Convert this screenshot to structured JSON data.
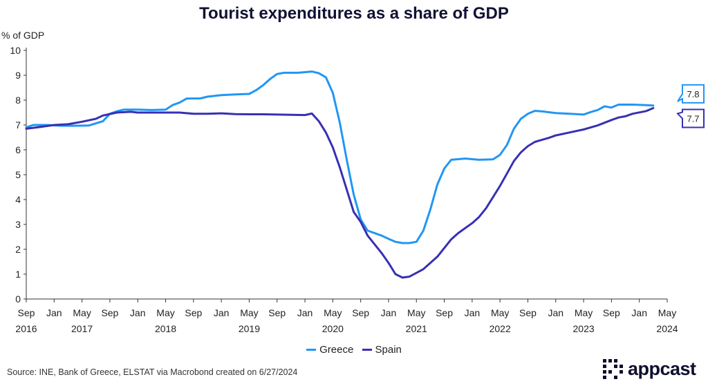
{
  "chart_data": {
    "type": "line",
    "title": "Tourist expenditures as a share of GDP",
    "ylabel": "% of GDP",
    "ylim": [
      0,
      10
    ],
    "yticks": [
      0,
      1,
      2,
      3,
      4,
      5,
      6,
      7,
      8,
      9,
      10
    ],
    "xlim": [
      "2016-09",
      "2024-05"
    ],
    "xticks": [
      {
        "date": "2016-09",
        "label": "Sep",
        "year": "2016"
      },
      {
        "date": "2017-01",
        "label": "Jan",
        "year": ""
      },
      {
        "date": "2017-05",
        "label": "May",
        "year": "2017"
      },
      {
        "date": "2017-09",
        "label": "Sep",
        "year": ""
      },
      {
        "date": "2018-01",
        "label": "Jan",
        "year": ""
      },
      {
        "date": "2018-05",
        "label": "May",
        "year": "2018"
      },
      {
        "date": "2018-09",
        "label": "Sep",
        "year": ""
      },
      {
        "date": "2019-01",
        "label": "Jan",
        "year": ""
      },
      {
        "date": "2019-05",
        "label": "May",
        "year": "2019"
      },
      {
        "date": "2019-09",
        "label": "Sep",
        "year": ""
      },
      {
        "date": "2020-01",
        "label": "Jan",
        "year": ""
      },
      {
        "date": "2020-05",
        "label": "May",
        "year": "2020"
      },
      {
        "date": "2020-09",
        "label": "Sep",
        "year": ""
      },
      {
        "date": "2021-01",
        "label": "Jan",
        "year": ""
      },
      {
        "date": "2021-05",
        "label": "May",
        "year": "2021"
      },
      {
        "date": "2021-09",
        "label": "Sep",
        "year": ""
      },
      {
        "date": "2022-01",
        "label": "Jan",
        "year": ""
      },
      {
        "date": "2022-05",
        "label": "May",
        "year": "2022"
      },
      {
        "date": "2022-09",
        "label": "Sep",
        "year": ""
      },
      {
        "date": "2023-01",
        "label": "Jan",
        "year": ""
      },
      {
        "date": "2023-05",
        "label": "May",
        "year": "2023"
      },
      {
        "date": "2023-09",
        "label": "Sep",
        "year": ""
      },
      {
        "date": "2024-01",
        "label": "Jan",
        "year": ""
      },
      {
        "date": "2024-05",
        "label": "May",
        "year": "2024"
      }
    ],
    "grid": false,
    "legend_position": "bottom-center",
    "series": [
      {
        "name": "Greece",
        "color": "#2196f3",
        "end_label": "7.8",
        "points": [
          [
            "2016-09",
            6.9
          ],
          [
            "2016-10",
            7.0
          ],
          [
            "2016-12",
            7.0
          ],
          [
            "2017-02",
            6.97
          ],
          [
            "2017-04",
            6.97
          ],
          [
            "2017-06",
            6.98
          ],
          [
            "2017-08",
            7.15
          ],
          [
            "2017-09",
            7.45
          ],
          [
            "2017-10",
            7.55
          ],
          [
            "2017-11",
            7.62
          ],
          [
            "2018-01",
            7.62
          ],
          [
            "2018-03",
            7.6
          ],
          [
            "2018-05",
            7.62
          ],
          [
            "2018-06",
            7.8
          ],
          [
            "2018-07",
            7.9
          ],
          [
            "2018-08",
            8.06
          ],
          [
            "2018-10",
            8.07
          ],
          [
            "2018-11",
            8.14
          ],
          [
            "2019-01",
            8.2
          ],
          [
            "2019-03",
            8.23
          ],
          [
            "2019-05",
            8.25
          ],
          [
            "2019-06",
            8.4
          ],
          [
            "2019-07",
            8.6
          ],
          [
            "2019-08",
            8.85
          ],
          [
            "2019-09",
            9.05
          ],
          [
            "2019-10",
            9.1
          ],
          [
            "2019-12",
            9.1
          ],
          [
            "2020-02",
            9.15
          ],
          [
            "2020-03",
            9.08
          ],
          [
            "2020-04",
            8.92
          ],
          [
            "2020-05",
            8.3
          ],
          [
            "2020-06",
            7.1
          ],
          [
            "2020-07",
            5.6
          ],
          [
            "2020-08",
            4.2
          ],
          [
            "2020-09",
            3.2
          ],
          [
            "2020-10",
            2.75
          ],
          [
            "2020-11",
            2.65
          ],
          [
            "2020-12",
            2.55
          ],
          [
            "2021-01",
            2.42
          ],
          [
            "2021-02",
            2.3
          ],
          [
            "2021-03",
            2.25
          ],
          [
            "2021-04",
            2.25
          ],
          [
            "2021-05",
            2.3
          ],
          [
            "2021-06",
            2.75
          ],
          [
            "2021-07",
            3.6
          ],
          [
            "2021-08",
            4.6
          ],
          [
            "2021-09",
            5.25
          ],
          [
            "2021-10",
            5.6
          ],
          [
            "2021-12",
            5.65
          ],
          [
            "2022-02",
            5.6
          ],
          [
            "2022-04",
            5.62
          ],
          [
            "2022-05",
            5.8
          ],
          [
            "2022-06",
            6.2
          ],
          [
            "2022-07",
            6.85
          ],
          [
            "2022-08",
            7.25
          ],
          [
            "2022-09",
            7.45
          ],
          [
            "2022-10",
            7.57
          ],
          [
            "2022-11",
            7.55
          ],
          [
            "2023-01",
            7.48
          ],
          [
            "2023-03",
            7.45
          ],
          [
            "2023-05",
            7.42
          ],
          [
            "2023-06",
            7.52
          ],
          [
            "2023-07",
            7.6
          ],
          [
            "2023-08",
            7.75
          ],
          [
            "2023-09",
            7.7
          ],
          [
            "2023-10",
            7.82
          ],
          [
            "2023-12",
            7.82
          ],
          [
            "2024-02",
            7.8
          ],
          [
            "2024-03",
            7.78
          ]
        ]
      },
      {
        "name": "Spain",
        "color": "#3730b3",
        "end_label": "7.7",
        "points": [
          [
            "2016-09",
            6.85
          ],
          [
            "2016-11",
            6.92
          ],
          [
            "2017-01",
            7.0
          ],
          [
            "2017-03",
            7.03
          ],
          [
            "2017-05",
            7.13
          ],
          [
            "2017-07",
            7.25
          ],
          [
            "2017-08",
            7.38
          ],
          [
            "2017-10",
            7.5
          ],
          [
            "2017-12",
            7.53
          ],
          [
            "2018-01",
            7.5
          ],
          [
            "2018-03",
            7.5
          ],
          [
            "2018-05",
            7.5
          ],
          [
            "2018-07",
            7.5
          ],
          [
            "2018-09",
            7.45
          ],
          [
            "2018-11",
            7.45
          ],
          [
            "2019-01",
            7.47
          ],
          [
            "2019-03",
            7.44
          ],
          [
            "2019-05",
            7.43
          ],
          [
            "2019-07",
            7.43
          ],
          [
            "2019-09",
            7.42
          ],
          [
            "2019-11",
            7.41
          ],
          [
            "2020-01",
            7.4
          ],
          [
            "2020-02",
            7.46
          ],
          [
            "2020-03",
            7.15
          ],
          [
            "2020-04",
            6.7
          ],
          [
            "2020-05",
            6.1
          ],
          [
            "2020-06",
            5.3
          ],
          [
            "2020-07",
            4.4
          ],
          [
            "2020-08",
            3.5
          ],
          [
            "2020-09",
            3.1
          ],
          [
            "2020-10",
            2.55
          ],
          [
            "2020-11",
            2.2
          ],
          [
            "2020-12",
            1.85
          ],
          [
            "2021-01",
            1.45
          ],
          [
            "2021-02",
            1.0
          ],
          [
            "2021-03",
            0.86
          ],
          [
            "2021-04",
            0.9
          ],
          [
            "2021-05",
            1.05
          ],
          [
            "2021-06",
            1.2
          ],
          [
            "2021-07",
            1.45
          ],
          [
            "2021-08",
            1.7
          ],
          [
            "2021-09",
            2.05
          ],
          [
            "2021-10",
            2.4
          ],
          [
            "2021-11",
            2.65
          ],
          [
            "2021-12",
            2.85
          ],
          [
            "2022-01",
            3.05
          ],
          [
            "2022-02",
            3.3
          ],
          [
            "2022-03",
            3.65
          ],
          [
            "2022-04",
            4.1
          ],
          [
            "2022-05",
            4.55
          ],
          [
            "2022-06",
            5.05
          ],
          [
            "2022-07",
            5.55
          ],
          [
            "2022-08",
            5.9
          ],
          [
            "2022-09",
            6.15
          ],
          [
            "2022-10",
            6.32
          ],
          [
            "2022-11",
            6.4
          ],
          [
            "2022-12",
            6.48
          ],
          [
            "2023-01",
            6.58
          ],
          [
            "2023-03",
            6.7
          ],
          [
            "2023-05",
            6.82
          ],
          [
            "2023-07",
            6.98
          ],
          [
            "2023-09",
            7.2
          ],
          [
            "2023-10",
            7.3
          ],
          [
            "2023-11",
            7.35
          ],
          [
            "2023-12",
            7.45
          ],
          [
            "2024-02",
            7.56
          ],
          [
            "2024-03",
            7.68
          ]
        ]
      }
    ]
  },
  "source": "Source: INE, Bank of Greece, ELSTAT via Macrobond created on 6/27/2024",
  "logo": {
    "text": "appcast",
    "color": "#0f0f2e"
  }
}
